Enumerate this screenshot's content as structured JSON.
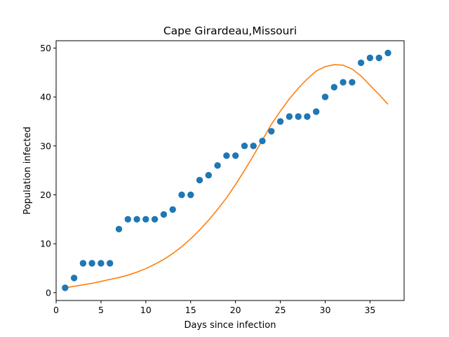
{
  "chart_data": {
    "type": "scatter",
    "title": "Cape Girardeau,Missouri",
    "xlabel": "Days since infection",
    "ylabel": "Population infected",
    "xlim": [
      0,
      38.8
    ],
    "ylim": [
      -1.6,
      51.5
    ],
    "xticks": [
      0,
      5,
      10,
      15,
      20,
      25,
      30,
      35
    ],
    "yticks": [
      0,
      10,
      20,
      30,
      40,
      50
    ],
    "grid": false,
    "legend": "none",
    "series": [
      {
        "kind": "scatter",
        "color": "#1f77b4",
        "x": [
          1,
          2,
          3,
          4,
          5,
          6,
          7,
          8,
          9,
          10,
          11,
          12,
          13,
          14,
          15,
          16,
          17,
          18,
          19,
          20,
          21,
          22,
          23,
          24,
          25,
          26,
          27,
          28,
          29,
          30,
          31,
          32,
          33,
          34,
          35,
          36,
          37
        ],
        "y": [
          1,
          3,
          6,
          6,
          6,
          6,
          13,
          15,
          15,
          15,
          15,
          16,
          17,
          20,
          20,
          23,
          24,
          26,
          28,
          28,
          30,
          30,
          31,
          33,
          35,
          36,
          36,
          36,
          37,
          40,
          42,
          43,
          43,
          47,
          48,
          48,
          49
        ]
      },
      {
        "kind": "line",
        "color": "#ff7f0e",
        "x": [
          1,
          2,
          3,
          4,
          5,
          6,
          7,
          8,
          9,
          10,
          11,
          12,
          13,
          14,
          15,
          16,
          17,
          18,
          19,
          20,
          21,
          22,
          23,
          24,
          25,
          26,
          27,
          28,
          29,
          30,
          31,
          32,
          33,
          34,
          35,
          36,
          37
        ],
        "y": [
          1.0,
          1.3,
          1.6,
          1.9,
          2.3,
          2.7,
          3.1,
          3.6,
          4.2,
          4.9,
          5.8,
          6.8,
          8.0,
          9.4,
          11.0,
          12.8,
          14.8,
          17.0,
          19.4,
          22.1,
          25.0,
          28.0,
          31.2,
          34.4,
          37.1,
          39.6,
          41.8,
          43.7,
          45.3,
          46.2,
          46.6,
          46.5,
          45.7,
          44.3,
          42.4,
          40.5,
          38.5
        ]
      }
    ]
  }
}
